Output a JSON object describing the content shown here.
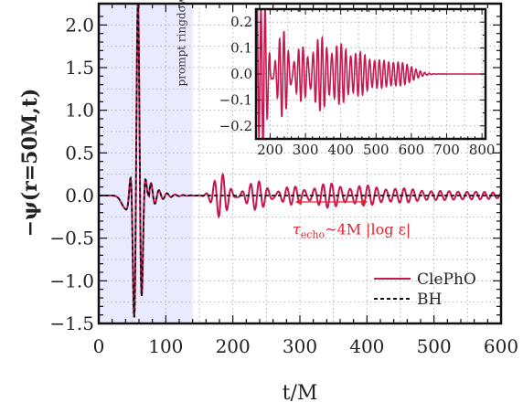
{
  "chart_data": {
    "type": "line",
    "xlabel": "t/M",
    "ylabel": "−ψ(r=50M,t)",
    "xlim": [
      0,
      600
    ],
    "ylim": [
      -1.5,
      2.25
    ],
    "xticks": [
      "0",
      "100",
      "200",
      "300",
      "400",
      "500",
      "600"
    ],
    "yticks": [
      "−1.5",
      "−1.0",
      "−0.5",
      "0.0",
      "0.5",
      "1.0",
      "1.5",
      "2.0"
    ],
    "grid": true,
    "legend_position": "bottom-right",
    "colors": {
      "clepho": "#c8174e",
      "bh": "#111111",
      "shade": "#eaeaff",
      "annotation": "#e8222d"
    },
    "series": [
      {
        "name": "ClePhO",
        "style": "solid",
        "x": [
          0,
          35,
          45,
          55,
          60,
          66,
          72,
          80,
          86,
          92,
          100,
          110,
          120,
          140,
          160,
          175,
          180,
          185,
          200,
          225,
          245,
          285,
          305,
          345,
          375,
          405,
          445,
          500,
          600
        ],
        "values": [
          0,
          0,
          -0.3,
          0.6,
          2.07,
          -1.42,
          0.7,
          -0.35,
          0.2,
          -0.1,
          0.05,
          0.02,
          0,
          0,
          0,
          0.2,
          -0.27,
          0.2,
          0,
          0.1,
          0,
          0.08,
          0,
          0.12,
          0,
          0.11,
          0,
          0.04,
          0.02
        ]
      },
      {
        "name": "BH",
        "style": "dashed",
        "x": [
          0,
          35,
          45,
          55,
          60,
          66,
          72,
          80,
          86,
          92,
          100,
          110,
          120,
          600
        ],
        "values": [
          0,
          0,
          -0.3,
          0.6,
          2.07,
          -1.42,
          0.7,
          -0.35,
          0.2,
          -0.1,
          0.05,
          0.02,
          0,
          0
        ]
      }
    ],
    "annotations": {
      "shaded_region": {
        "x": [
          0,
          140
        ],
        "label": "prompt ringdown"
      },
      "echo_arrow": {
        "x": [
          293,
          401
        ],
        "y": 0.0
      },
      "echo_label": {
        "tau": "τ",
        "sub": "echo",
        "rest": "~4M |log ε|"
      }
    },
    "inset": {
      "xlim": [
        160,
        810
      ],
      "ylim": [
        -0.25,
        0.25
      ],
      "xticks": [
        "200",
        "300",
        "400",
        "500",
        "600",
        "700",
        "800"
      ],
      "yticks": [
        "−0.2",
        "−0.1",
        "0.0",
        "0.1",
        "0.2"
      ],
      "grid": true,
      "series_name": "ClePhO"
    }
  }
}
